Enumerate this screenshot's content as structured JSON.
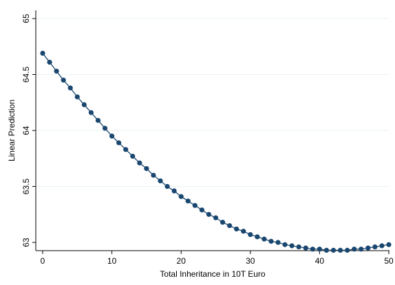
{
  "chart_data": {
    "type": "line",
    "xlabel": "Total Inheritance in 10T Euro",
    "ylabel": "Linear Prediction",
    "xlim": [
      0,
      50
    ],
    "ylim": [
      63,
      65
    ],
    "x_ticks": [
      "0",
      "10",
      "20",
      "30",
      "40",
      "50"
    ],
    "y_ticks": [
      "63",
      "63.5",
      "64",
      "64.5",
      "65"
    ],
    "grid": true,
    "marker": "circle",
    "colors": {
      "series": "#1a476f",
      "grid": "#eaf2f3",
      "axis": "#000000"
    },
    "series": [
      {
        "x": [
          0,
          1,
          2,
          3,
          4,
          5,
          6,
          7,
          8,
          9,
          10,
          11,
          12,
          13,
          14,
          15,
          16,
          17,
          18,
          19,
          20,
          21,
          22,
          23,
          24,
          25,
          26,
          27,
          28,
          29,
          30,
          31,
          32,
          33,
          34,
          35,
          36,
          37,
          38,
          39,
          40,
          41,
          42,
          43,
          44,
          45,
          46,
          47,
          48,
          49,
          50
        ],
        "values": [
          64.69,
          64.61,
          64.53,
          64.45,
          64.38,
          64.3,
          64.23,
          64.16,
          64.09,
          64.02,
          63.95,
          63.89,
          63.83,
          63.77,
          63.71,
          63.66,
          63.6,
          63.55,
          63.5,
          63.46,
          63.41,
          63.37,
          63.33,
          63.29,
          63.25,
          63.22,
          63.18,
          63.15,
          63.12,
          63.1,
          63.07,
          63.05,
          63.03,
          63.01,
          63.0,
          62.98,
          62.97,
          62.96,
          62.95,
          62.94,
          62.94,
          62.93,
          62.93,
          62.93,
          62.93,
          62.94,
          62.94,
          62.95,
          62.96,
          62.97,
          62.98
        ]
      }
    ]
  }
}
